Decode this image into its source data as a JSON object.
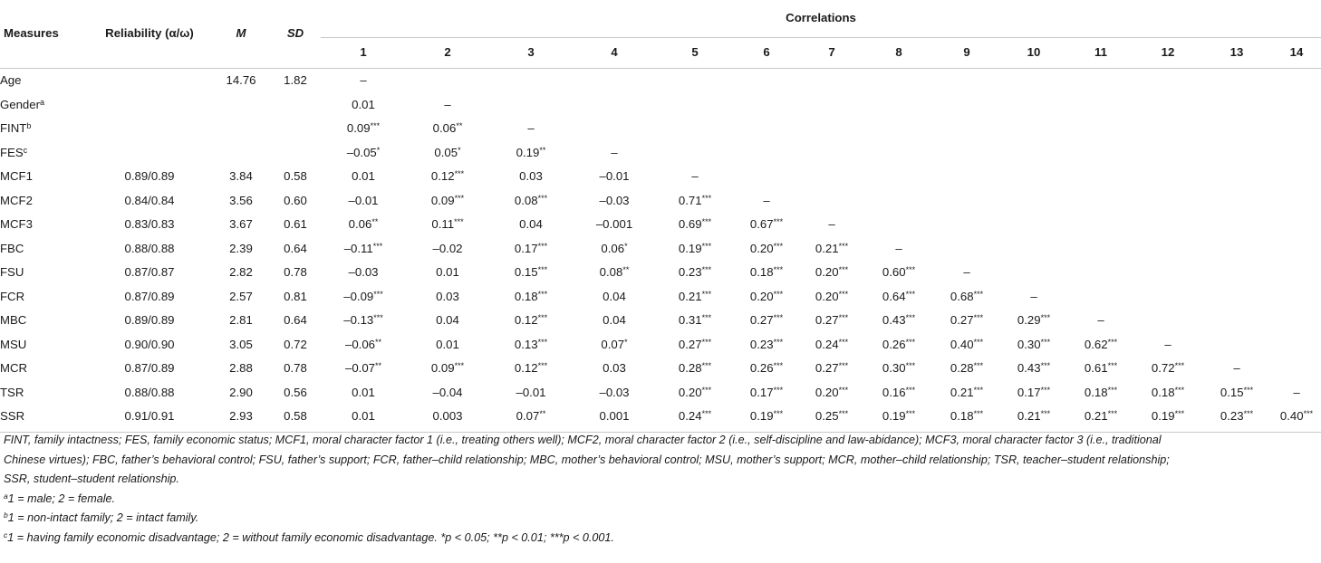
{
  "table": {
    "headers": {
      "measures": "Measures",
      "reliability": "Reliability (α/ω)",
      "m": "M",
      "sd": "SD",
      "correlations": "Correlations",
      "cols": [
        "1",
        "2",
        "3",
        "4",
        "5",
        "6",
        "7",
        "8",
        "9",
        "10",
        "11",
        "12",
        "13",
        "14"
      ]
    },
    "rows": [
      {
        "label": "Age",
        "sup": "",
        "rel": "",
        "m": "14.76",
        "sd": "1.82",
        "cells": [
          "–",
          "",
          "",
          "",
          "",
          "",
          "",
          "",
          "",
          "",
          "",
          "",
          "",
          ""
        ]
      },
      {
        "label": "Gender",
        "sup": "a",
        "rel": "",
        "m": "",
        "sd": "",
        "cells": [
          "0.01",
          "–",
          "",
          "",
          "",
          "",
          "",
          "",
          "",
          "",
          "",
          "",
          "",
          ""
        ]
      },
      {
        "label": "FINT",
        "sup": "b",
        "rel": "",
        "m": "",
        "sd": "",
        "cells": [
          "0.09***",
          "0.06**",
          "–",
          "",
          "",
          "",
          "",
          "",
          "",
          "",
          "",
          "",
          "",
          ""
        ]
      },
      {
        "label": "FES",
        "sup": "c",
        "rel": "",
        "m": "",
        "sd": "",
        "cells": [
          "–0.05*",
          "0.05*",
          "0.19**",
          "–",
          "",
          "",
          "",
          "",
          "",
          "",
          "",
          "",
          "",
          ""
        ]
      },
      {
        "label": "MCF1",
        "sup": "",
        "rel": "0.89/0.89",
        "m": "3.84",
        "sd": "0.58",
        "cells": [
          "0.01",
          "0.12***",
          "0.03",
          "–0.01",
          "–",
          "",
          "",
          "",
          "",
          "",
          "",
          "",
          "",
          ""
        ]
      },
      {
        "label": "MCF2",
        "sup": "",
        "rel": "0.84/0.84",
        "m": "3.56",
        "sd": "0.60",
        "cells": [
          "–0.01",
          "0.09***",
          "0.08***",
          "–0.03",
          "0.71***",
          "–",
          "",
          "",
          "",
          "",
          "",
          "",
          "",
          ""
        ]
      },
      {
        "label": "MCF3",
        "sup": "",
        "rel": "0.83/0.83",
        "m": "3.67",
        "sd": "0.61",
        "cells": [
          "0.06**",
          "0.11***",
          "0.04",
          "–0.001",
          "0.69***",
          "0.67***",
          "–",
          "",
          "",
          "",
          "",
          "",
          "",
          ""
        ]
      },
      {
        "label": "FBC",
        "sup": "",
        "rel": "0.88/0.88",
        "m": "2.39",
        "sd": "0.64",
        "cells": [
          "–0.11***",
          "–0.02",
          "0.17***",
          "0.06*",
          "0.19***",
          "0.20***",
          "0.21***",
          "–",
          "",
          "",
          "",
          "",
          "",
          ""
        ]
      },
      {
        "label": "FSU",
        "sup": "",
        "rel": "0.87/0.87",
        "m": "2.82",
        "sd": "0.78",
        "cells": [
          "–0.03",
          "0.01",
          "0.15***",
          "0.08**",
          "0.23***",
          "0.18***",
          "0.20***",
          "0.60***",
          "–",
          "",
          "",
          "",
          "",
          ""
        ]
      },
      {
        "label": "FCR",
        "sup": "",
        "rel": "0.87/0.89",
        "m": "2.57",
        "sd": "0.81",
        "cells": [
          "–0.09***",
          "0.03",
          "0.18***",
          "0.04",
          "0.21***",
          "0.20***",
          "0.20***",
          "0.64***",
          "0.68***",
          "–",
          "",
          "",
          "",
          ""
        ]
      },
      {
        "label": "MBC",
        "sup": "",
        "rel": "0.89/0.89",
        "m": "2.81",
        "sd": "0.64",
        "cells": [
          "–0.13***",
          "0.04",
          "0.12***",
          "0.04",
          "0.31***",
          "0.27***",
          "0.27***",
          "0.43***",
          "0.27***",
          "0.29***",
          "–",
          "",
          "",
          ""
        ]
      },
      {
        "label": "MSU",
        "sup": "",
        "rel": "0.90/0.90",
        "m": "3.05",
        "sd": "0.72",
        "cells": [
          "–0.06**",
          "0.01",
          "0.13***",
          "0.07*",
          "0.27***",
          "0.23***",
          "0.24***",
          "0.26***",
          "0.40***",
          "0.30***",
          "0.62***",
          "–",
          "",
          ""
        ]
      },
      {
        "label": "MCR",
        "sup": "",
        "rel": "0.87/0.89",
        "m": "2.88",
        "sd": "0.78",
        "cells": [
          "–0.07**",
          "0.09***",
          "0.12***",
          "0.03",
          "0.28***",
          "0.26***",
          "0.27***",
          "0.30***",
          "0.28***",
          "0.43***",
          "0.61***",
          "0.72***",
          "–",
          ""
        ]
      },
      {
        "label": "TSR",
        "sup": "",
        "rel": "0.88/0.88",
        "m": "2.90",
        "sd": "0.56",
        "cells": [
          "0.01",
          "–0.04",
          "–0.01",
          "–0.03",
          "0.20***",
          "0.17***",
          "0.20***",
          "0.16***",
          "0.21***",
          "0.17***",
          "0.18***",
          "0.18***",
          "0.15***",
          "–"
        ]
      },
      {
        "label": "SSR",
        "sup": "",
        "rel": "0.91/0.91",
        "m": "2.93",
        "sd": "0.58",
        "cells": [
          "0.01",
          "0.003",
          "0.07**",
          "0.001",
          "0.24***",
          "0.19***",
          "0.25***",
          "0.19***",
          "0.18***",
          "0.21***",
          "0.21***",
          "0.19***",
          "0.23***",
          "0.40***"
        ]
      }
    ]
  },
  "notes": {
    "abbrev_line1": "FINT, family intactness; FES, family economic status; MCF1, moral character factor 1 (i.e., treating others well); MCF2, moral character factor 2 (i.e., self-discipline and law-abidance); MCF3, moral character factor 3 (i.e., traditional",
    "abbrev_line2": "Chinese virtues); FBC, father’s behavioral control; FSU, father’s support; FCR, father–child relationship; MBC, mother’s behavioral control; MSU, mother’s support; MCR, mother–child relationship; TSR, teacher–student relationship;",
    "abbrev_line3": "SSR, student–student relationship.",
    "note_a_mark": "a",
    "note_a": "1 = male; 2 = female.",
    "note_b_mark": "b",
    "note_b": "1 = non-intact family; 2 = intact family.",
    "note_c_mark": "c",
    "note_c": "1 = having family economic disadvantage; 2 = without family economic disadvantage. *p < 0.05; **p < 0.01; ***p < 0.001."
  }
}
